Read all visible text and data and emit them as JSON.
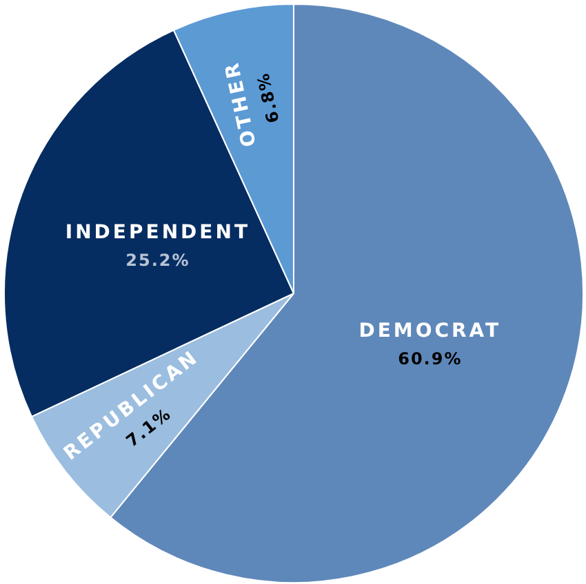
{
  "chart_data": {
    "type": "pie",
    "categories": [
      "DEMOCRAT",
      "REPUBLICAN",
      "INDEPENDENT",
      "OTHER"
    ],
    "values": [
      60.9,
      7.1,
      25.2,
      6.8
    ],
    "colors": [
      "#5f88ba",
      "#9bbddf",
      "#062d61",
      "#5c9ad4"
    ],
    "value_labels": [
      "60.9%",
      "7.1%",
      "25.2%",
      "6.8%"
    ]
  }
}
